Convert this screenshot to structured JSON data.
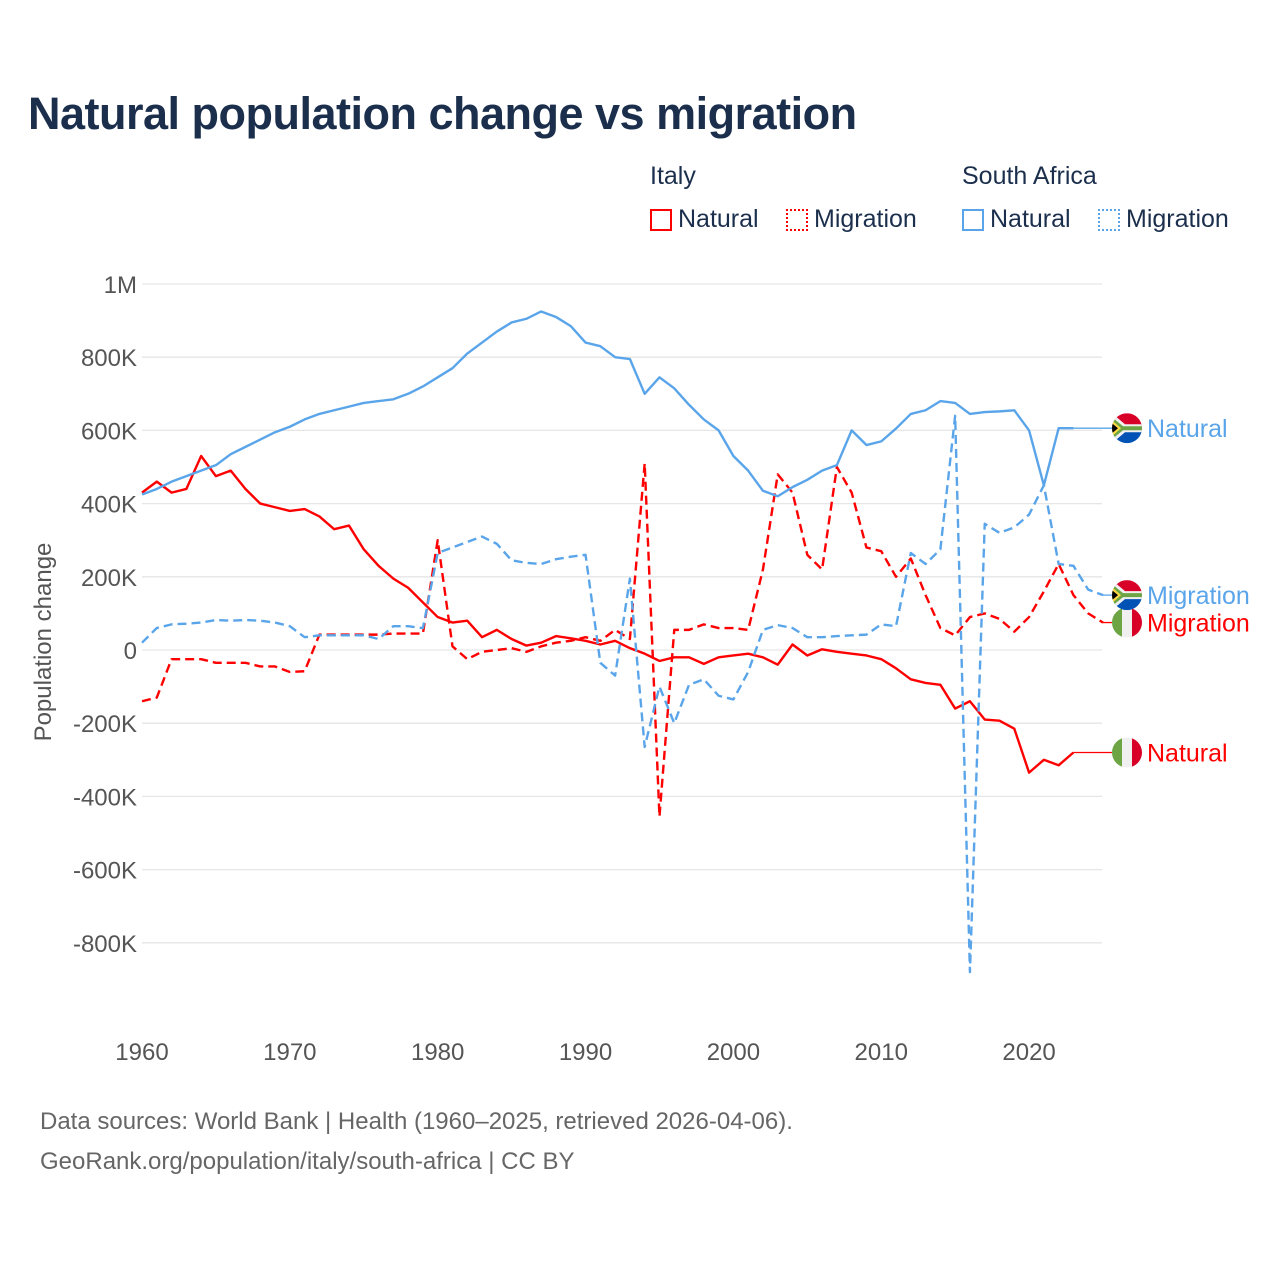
{
  "title": "Natural population change vs migration",
  "legend": {
    "groups": [
      {
        "country": "Italy",
        "items": [
          {
            "label": "Natural",
            "style": "solid"
          },
          {
            "label": "Migration",
            "style": "dotted"
          }
        ],
        "color": "#ff0000"
      },
      {
        "country": "South Africa",
        "items": [
          {
            "label": "Natural",
            "style": "solid"
          },
          {
            "label": "Migration",
            "style": "dotted"
          }
        ],
        "color": "#5aa5ea"
      }
    ]
  },
  "footer": {
    "line1": "Data sources: World Bank | Health (1960–2025, retrieved 2026-04-06).",
    "line2": "GeoRank.org/population/italy/south-africa | CC BY"
  },
  "chart_data": {
    "type": "line",
    "title": "Natural population change vs migration",
    "xlabel": "",
    "ylabel": "Population change",
    "xlim": [
      1960,
      2025
    ],
    "ylim": [
      -1000000,
      1000000
    ],
    "x_ticks": [
      1960,
      1970,
      1980,
      1990,
      2000,
      2010,
      2020
    ],
    "x_tick_labels": [
      "1960",
      "1970",
      "1980",
      "1990",
      "2000",
      "2010",
      "2020"
    ],
    "y_ticks": [
      1000000,
      800000,
      600000,
      400000,
      200000,
      0,
      -200000,
      -400000,
      -600000,
      -800000
    ],
    "y_tick_labels": [
      "1M",
      "800K",
      "600K",
      "400K",
      "200K",
      "0",
      "-200K",
      "-400K",
      "-600K",
      "-800K"
    ],
    "grid": true,
    "start_year": 1960,
    "series": [
      {
        "name": "Italy Natural",
        "end_label": "Natural",
        "country": "Italy",
        "color": "#ff0000",
        "dash": "solid",
        "extend_to": 2025,
        "values": [
          430000,
          460000,
          430000,
          440000,
          530000,
          475000,
          490000,
          440000,
          400000,
          390000,
          380000,
          385000,
          365000,
          330000,
          340000,
          275000,
          230000,
          195000,
          170000,
          130000,
          90000,
          75000,
          80000,
          35000,
          55000,
          30000,
          12000,
          20000,
          38000,
          32000,
          25000,
          15000,
          25000,
          5000,
          -10000,
          -30000,
          -20000,
          -20000,
          -38000,
          -20000,
          -15000,
          -10000,
          -20000,
          -40000,
          15000,
          -15000,
          2000,
          -5000,
          -10000,
          -15000,
          -25000,
          -50000,
          -80000,
          -90000,
          -95000,
          -160000,
          -140000,
          -190000,
          -193000,
          -215000,
          -335000,
          -300000,
          -315000,
          -280000
        ]
      },
      {
        "name": "Italy Migration",
        "end_label": "Migration",
        "country": "Italy",
        "color": "#ff0000",
        "dash": "dashed",
        "extend_to": 2025,
        "values": [
          -140000,
          -130000,
          -25000,
          -25000,
          -25000,
          -35000,
          -35000,
          -35000,
          -45000,
          -45000,
          -60000,
          -58000,
          42000,
          42000,
          42000,
          42000,
          42000,
          45000,
          45000,
          45000,
          300000,
          10000,
          -25000,
          -5000,
          0,
          5000,
          -5000,
          10000,
          20000,
          25000,
          35000,
          25000,
          55000,
          30000,
          510000,
          -455000,
          55000,
          55000,
          70000,
          60000,
          60000,
          55000,
          220000,
          480000,
          430000,
          260000,
          220000,
          500000,
          430000,
          280000,
          270000,
          200000,
          250000,
          150000,
          60000,
          40000,
          90000,
          100000,
          85000,
          50000,
          90000,
          160000,
          235000,
          150000,
          100000,
          75000
        ]
      },
      {
        "name": "South Africa Natural",
        "end_label": "Natural",
        "country": "South Africa",
        "color": "#5aa5ea",
        "dash": "solid",
        "extend_to": 2025,
        "values": [
          425000,
          440000,
          460000,
          475000,
          490000,
          505000,
          535000,
          555000,
          575000,
          595000,
          610000,
          630000,
          645000,
          655000,
          665000,
          675000,
          680000,
          685000,
          700000,
          720000,
          745000,
          770000,
          810000,
          840000,
          870000,
          895000,
          905000,
          925000,
          910000,
          885000,
          840000,
          830000,
          800000,
          795000,
          700000,
          745000,
          715000,
          670000,
          630000,
          600000,
          530000,
          490000,
          435000,
          420000,
          445000,
          465000,
          490000,
          505000,
          600000,
          560000,
          570000,
          605000,
          645000,
          655000,
          680000,
          675000,
          645000,
          650000,
          652000,
          655000,
          600000,
          450000,
          606000,
          606000
        ]
      },
      {
        "name": "South Africa Migration",
        "end_label": "Migration",
        "country": "South Africa",
        "color": "#5aa5ea",
        "dash": "dashed",
        "extend_to": 2025,
        "values": [
          20000,
          60000,
          70000,
          72000,
          75000,
          82000,
          80000,
          82000,
          80000,
          75000,
          65000,
          35000,
          40000,
          40000,
          40000,
          40000,
          30000,
          65000,
          65000,
          60000,
          265000,
          280000,
          295000,
          310000,
          290000,
          245000,
          238000,
          235000,
          248000,
          255000,
          260000,
          -35000,
          -70000,
          195000,
          -265000,
          -100000,
          -200000,
          -95000,
          -80000,
          -125000,
          -135000,
          -60000,
          55000,
          68000,
          60000,
          35000,
          35000,
          38000,
          40000,
          42000,
          70000,
          65000,
          265000,
          235000,
          275000,
          640000,
          -880000,
          345000,
          320000,
          335000,
          370000,
          450000,
          235000,
          230000,
          165000,
          150000
        ]
      }
    ]
  }
}
